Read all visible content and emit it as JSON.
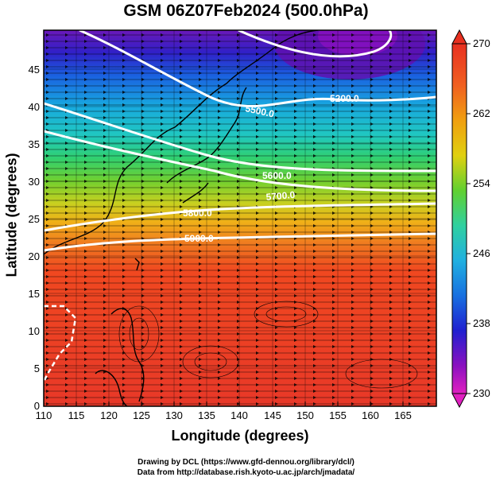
{
  "title": "GSM 06Z07Feb2024 (500.0hPa)",
  "axes": {
    "xlabel": "Longitude (degrees)",
    "ylabel": "Latitude  (degrees)",
    "xlim": [
      110,
      170
    ],
    "ylim": [
      0,
      50
    ],
    "xticks": [
      "110",
      "115",
      "120",
      "125",
      "130",
      "135",
      "140",
      "145",
      "150",
      "155",
      "160",
      "165"
    ],
    "yticks": [
      "0",
      "5",
      "10",
      "15",
      "20",
      "25",
      "30",
      "35",
      "40",
      "45"
    ]
  },
  "colorbar": {
    "min": 230,
    "max": 270,
    "ticks": [
      "270",
      "262",
      "254",
      "246",
      "238",
      "230"
    ],
    "colors": [
      "#e020c0",
      "#8a10c0",
      "#2020d0",
      "#1870e0",
      "#20b0e0",
      "#30d0a0",
      "#40d040",
      "#90d020",
      "#e0d010",
      "#f0a010",
      "#f07020",
      "#f04020",
      "#e83020"
    ]
  },
  "contours": {
    "labels": [
      "5200.0",
      "5500.0",
      "5600.0",
      "5700.0",
      "5800.0",
      "5900.0"
    ]
  },
  "credits": {
    "line1": "Drawing by DCL (https://www.gfd-dennou.org/library/dcl/)",
    "line2": "Data from http://database.rish.kyoto-u.ac.jp/arch/jmadata/"
  }
}
